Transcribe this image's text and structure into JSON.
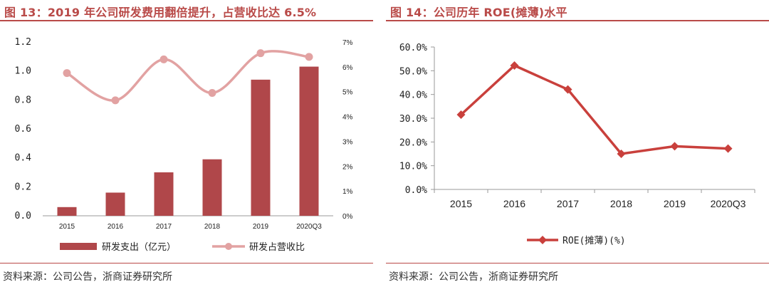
{
  "left": {
    "title": "图 13：2019 年公司研发费用翻倍提升，占营收比达 6.5%",
    "source": "资料来源：公司公告，浙商证券研究所",
    "colors": {
      "bar": "#b0474a",
      "line": "#e2a2a2",
      "accent": "#b94a48"
    }
  },
  "right": {
    "title": "图 14：公司历年 ROE(摊薄)水平",
    "source": "资料来源：公司公告，浙商证券研究所",
    "colors": {
      "line": "#c9403c",
      "accent": "#b94a48"
    }
  },
  "chart_data": [
    {
      "type": "bar",
      "categories": [
        "2015",
        "2016",
        "2017",
        "2018",
        "2019",
        "2020Q3"
      ],
      "series": [
        {
          "name": "研发支出（亿元）",
          "type": "bar",
          "axis": "left",
          "values": [
            0.06,
            0.16,
            0.3,
            0.39,
            0.94,
            1.03
          ]
        },
        {
          "name": "研发占营收比",
          "type": "line",
          "axis": "right",
          "values": [
            5.75,
            4.65,
            6.3,
            4.95,
            6.55,
            6.4
          ]
        }
      ],
      "yticks": [
        "0.0",
        "0.2",
        "0.4",
        "0.6",
        "0.8",
        "1.0",
        "1.2"
      ],
      "ylim": [
        0,
        1.2
      ],
      "y2ticks": [
        "0%",
        "1%",
        "2%",
        "3%",
        "4%",
        "5%",
        "6%",
        "7%"
      ],
      "y2lim": [
        0,
        7
      ],
      "legend": "bottom"
    },
    {
      "type": "line",
      "categories": [
        "2015",
        "2016",
        "2017",
        "2018",
        "2019",
        "2020Q3"
      ],
      "series": [
        {
          "name": "ROE(摊薄)(%)",
          "values": [
            31.5,
            52.2,
            42.1,
            15.0,
            18.2,
            17.2
          ]
        }
      ],
      "yticks": [
        "0.0%",
        "10.0%",
        "20.0%",
        "30.0%",
        "40.0%",
        "50.0%",
        "60.0%"
      ],
      "ylim": [
        0,
        60
      ],
      "legend": "bottom"
    }
  ]
}
